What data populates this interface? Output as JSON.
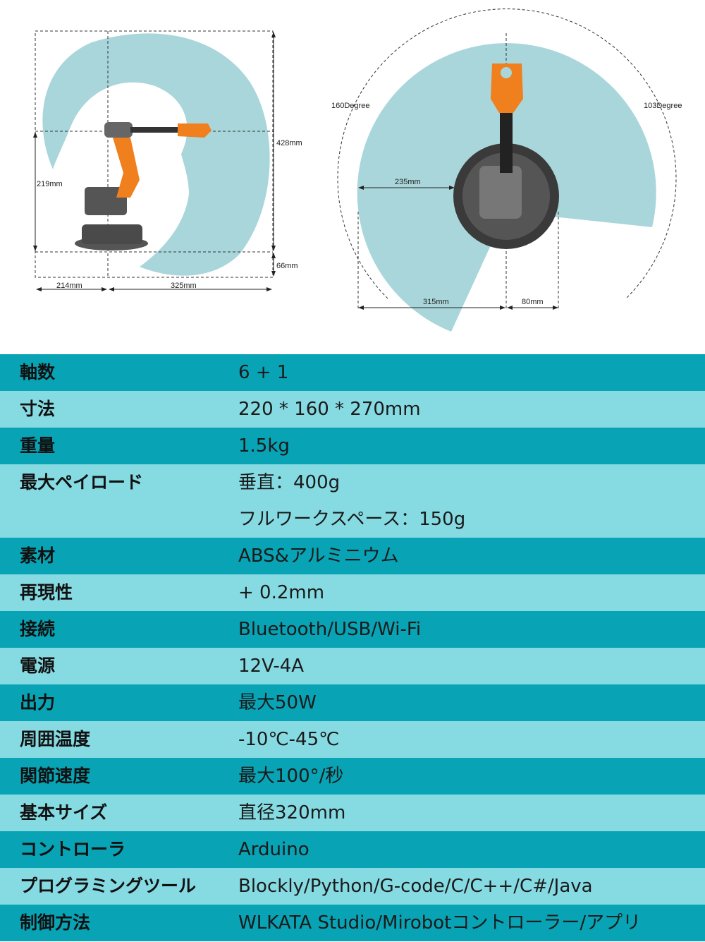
{
  "diagram_side": {
    "labels": {
      "height_total": "428mm",
      "height_shoulder": "219mm",
      "base_offset": "66mm",
      "reach_back": "214mm",
      "reach_front": "325mm"
    }
  },
  "diagram_top": {
    "labels": {
      "angle_left": "160Degree",
      "angle_right": "103Degree",
      "inner_radius": "235mm",
      "reach_left": "315mm",
      "reach_right": "80mm"
    }
  },
  "colors": {
    "workspace": "#a9d6da",
    "row_dark": "#08a3b5",
    "row_light": "#86dbe3",
    "robot_orange": "#f07f1e"
  },
  "specs": [
    {
      "label": "軸数",
      "values": [
        "6 + 1"
      ]
    },
    {
      "label": "寸法",
      "values": [
        "220 * 160 * 270mm"
      ]
    },
    {
      "label": "重量",
      "values": [
        "1.5kg"
      ]
    },
    {
      "label": "最大ペイロード",
      "values": [
        "垂直：400g",
        "フルワークスペース：150g"
      ]
    },
    {
      "label": "素材",
      "values": [
        "ABS&アルミニウム"
      ]
    },
    {
      "label": "再現性",
      "values": [
        "+ 0.2mm"
      ]
    },
    {
      "label": "接続",
      "values": [
        "Bluetooth/USB/Wi-Fi"
      ]
    },
    {
      "label": "電源",
      "values": [
        "12V-4A"
      ]
    },
    {
      "label": "出力",
      "values": [
        "最大50W"
      ]
    },
    {
      "label": "周囲温度",
      "values": [
        "-10℃-45℃"
      ]
    },
    {
      "label": "関節速度",
      "values": [
        "最大100°/秒"
      ]
    },
    {
      "label": "基本サイズ",
      "values": [
        "直径320mm"
      ]
    },
    {
      "label": "コントローラ",
      "values": [
        "Arduino"
      ]
    },
    {
      "label": "プログラミングツール",
      "values": [
        "Blockly/Python/G-code/C/C++/C#/Java"
      ]
    },
    {
      "label": "制御方法",
      "values": [
        "WLKATA Studio/Mirobotコントローラー/アプリ"
      ]
    }
  ]
}
